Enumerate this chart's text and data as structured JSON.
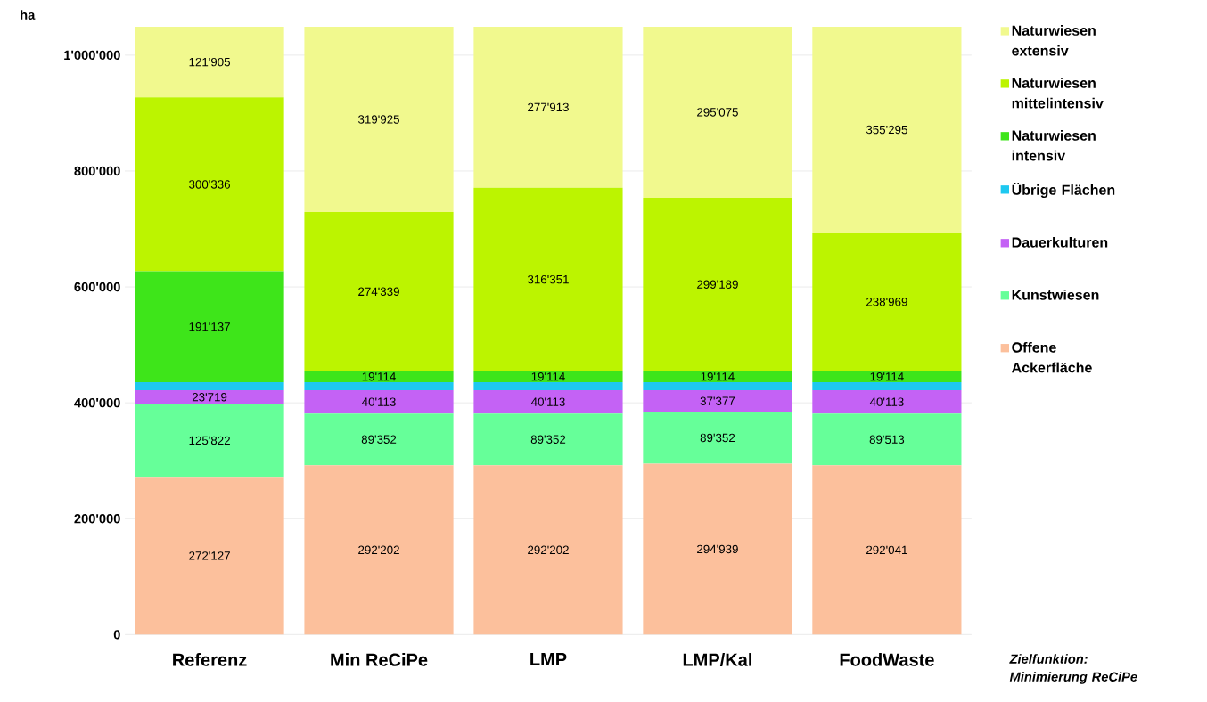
{
  "chart_data": {
    "type": "bar",
    "stacked": true,
    "ylabel": "ha",
    "categories": [
      "Referenz",
      "Min ReCiPe",
      "LMP",
      "LMP/Kal",
      "FoodWaste"
    ],
    "series": [
      {
        "name": "Offene Ackerfläche",
        "color": "#fcc09c",
        "values": [
          272127,
          292202,
          292202,
          294939,
          292041
        ],
        "value_labels": [
          "272'127",
          "292'202",
          "292'202",
          "294'939",
          "292'041"
        ]
      },
      {
        "name": "Kunstwiesen",
        "color": "#66ff99",
        "values": [
          125822,
          89352,
          89352,
          89352,
          89513
        ],
        "value_labels": [
          "125'822",
          "89'352",
          "89'352",
          "89'352",
          "89'513"
        ]
      },
      {
        "name": "Dauerkulturen",
        "color": "#c462f5",
        "values": [
          23719,
          40113,
          40113,
          37377,
          40113
        ],
        "value_labels": [
          "23'719",
          "40'113",
          "40'113",
          "37'377",
          "40'113"
        ]
      },
      {
        "name": "Übrige Flächen",
        "color": "#1ec8f0",
        "values": [
          14000,
          14000,
          14000,
          14000,
          14000
        ]
      },
      {
        "name": "Naturwiesen intensiv",
        "color": "#3ee51a",
        "values": [
          191137,
          19114,
          19114,
          19114,
          19114
        ],
        "value_labels": [
          "191'137",
          "19'114",
          "19'114",
          "19'114",
          "19'114"
        ]
      },
      {
        "name": "Naturwiesen mittelintensiv",
        "color": "#bcf400",
        "values": [
          300336,
          274339,
          316351,
          299189,
          238969
        ],
        "value_labels": [
          "300'336",
          "274'339",
          "316'351",
          "299'189",
          "238'969"
        ]
      },
      {
        "name": "Naturwiesen extensiv",
        "color": "#f1f98e",
        "values": [
          121905,
          319925,
          277913,
          295075,
          355295
        ],
        "value_labels": [
          "121'905",
          "319'925",
          "277'913",
          "295'075",
          "355'295"
        ]
      }
    ],
    "ylim": [
      0,
      1050000
    ],
    "yticks": [
      {
        "value": 0,
        "label": "0"
      },
      {
        "value": 200000,
        "label": "200'000"
      },
      {
        "value": 400000,
        "label": "400'000"
      },
      {
        "value": 600000,
        "label": "600'000"
      },
      {
        "value": 800000,
        "label": "800'000"
      },
      {
        "value": 1000000,
        "label": "1'000'000"
      }
    ],
    "grid": "y",
    "legend": "right",
    "annotations": [
      "Zielfunktion: Minimierung ReCiPe"
    ]
  }
}
